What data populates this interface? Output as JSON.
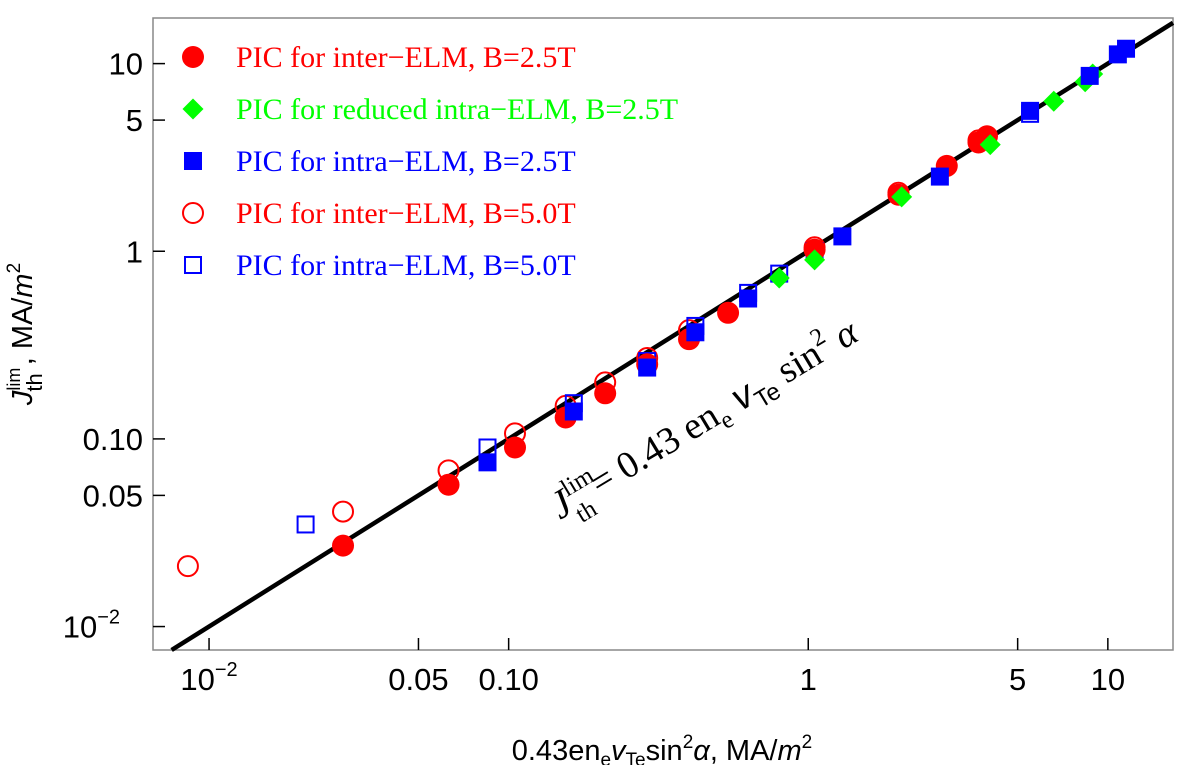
{
  "chart_data": {
    "type": "scatter",
    "x_scale": "log",
    "y_scale": "log",
    "xlabel": {
      "base": "0.43en",
      "sub1": "e",
      "italic": "v",
      "sub2": "Te",
      "sin": "sin",
      "sup": "2",
      "alpha": "α",
      "unit": ", MA/",
      "m": "m",
      "msup": "2"
    },
    "ylabel": {
      "J": "J",
      "sup": "lim",
      "sub": "th",
      "unit": " , MA/",
      "m": "m",
      "msup": "2"
    },
    "xlim": [
      0.0065,
      16.5
    ],
    "ylim": [
      0.0075,
      17.5
    ],
    "x_ticks": [
      {
        "value": 0.01,
        "label": "10",
        "sup": "−2"
      },
      {
        "value": 0.05,
        "label": "0.05"
      },
      {
        "value": 0.1,
        "label": "0.10"
      },
      {
        "value": 1,
        "label": "1"
      },
      {
        "value": 5,
        "label": "5"
      },
      {
        "value": 10,
        "label": "10"
      }
    ],
    "y_ticks": [
      {
        "value": 0.01,
        "label": "10",
        "sup": "−2"
      },
      {
        "value": 0.05,
        "label": "0.05"
      },
      {
        "value": 0.1,
        "label": "0.10"
      },
      {
        "value": 1,
        "label": "1"
      },
      {
        "value": 5,
        "label": "5"
      },
      {
        "value": 10,
        "label": "10"
      }
    ],
    "fit_line": {
      "slope": 1,
      "label": {
        "J": "J",
        "sup": "lim",
        "sub": "th",
        "eq": " = 0.43 en",
        "e": "e",
        "v": " v",
        "te": "Te",
        "sin": " sin",
        "sup2": "2",
        "alpha": " α"
      }
    },
    "series": [
      {
        "name": "PIC for inter−ELM, B=2.5T",
        "color": "#ff0000",
        "marker": "circle-filled",
        "points": [
          [
            0.028,
            0.027
          ],
          [
            0.063,
            0.057
          ],
          [
            0.105,
            0.09
          ],
          [
            0.155,
            0.13
          ],
          [
            0.21,
            0.175
          ],
          [
            0.29,
            0.25
          ],
          [
            0.4,
            0.34
          ],
          [
            0.54,
            0.47
          ],
          [
            1.05,
            1.02
          ],
          [
            2.0,
            2.0
          ],
          [
            2.9,
            2.85
          ],
          [
            3.7,
            3.8
          ],
          [
            3.95,
            4.1
          ]
        ]
      },
      {
        "name": "PIC for reduced intra−ELM, B=2.5T",
        "color": "#00ff00",
        "marker": "diamond-filled",
        "points": [
          [
            0.8,
            0.72
          ],
          [
            1.05,
            0.9
          ],
          [
            2.05,
            1.95
          ],
          [
            4.05,
            3.7
          ],
          [
            6.6,
            6.3
          ],
          [
            8.4,
            8.0
          ],
          [
            8.9,
            8.8
          ]
        ]
      },
      {
        "name": "PIC for intra−ELM, B=2.5T",
        "color": "#0000ff",
        "marker": "square-filled",
        "points": [
          [
            0.085,
            0.075
          ],
          [
            0.165,
            0.14
          ],
          [
            0.29,
            0.24
          ],
          [
            0.42,
            0.37
          ],
          [
            0.63,
            0.56
          ],
          [
            1.3,
            1.2
          ],
          [
            2.75,
            2.5
          ],
          [
            5.5,
            5.6
          ],
          [
            8.7,
            8.6
          ],
          [
            10.8,
            11.2
          ],
          [
            11.5,
            12.0
          ]
        ]
      },
      {
        "name": "PIC for inter−ELM, B=5.0T",
        "color": "#ff0000",
        "marker": "circle-open",
        "points": [
          [
            0.0085,
            0.021
          ],
          [
            0.028,
            0.041
          ],
          [
            0.063,
            0.068
          ],
          [
            0.105,
            0.107
          ],
          [
            0.155,
            0.15
          ],
          [
            0.21,
            0.2
          ],
          [
            0.29,
            0.27
          ],
          [
            0.4,
            0.38
          ],
          [
            1.05,
            1.05
          ],
          [
            2.0,
            2.05
          ],
          [
            3.7,
            3.9
          ]
        ]
      },
      {
        "name": "PIC for intra−ELM, B=5.0T",
        "color": "#0000ff",
        "marker": "square-open",
        "points": [
          [
            0.021,
            0.035
          ],
          [
            0.085,
            0.09
          ],
          [
            0.165,
            0.155
          ],
          [
            0.29,
            0.26
          ],
          [
            0.42,
            0.4
          ],
          [
            0.63,
            0.6
          ],
          [
            0.8,
            0.76
          ],
          [
            1.05,
            1.0
          ],
          [
            5.5,
            5.4
          ]
        ]
      }
    ]
  }
}
